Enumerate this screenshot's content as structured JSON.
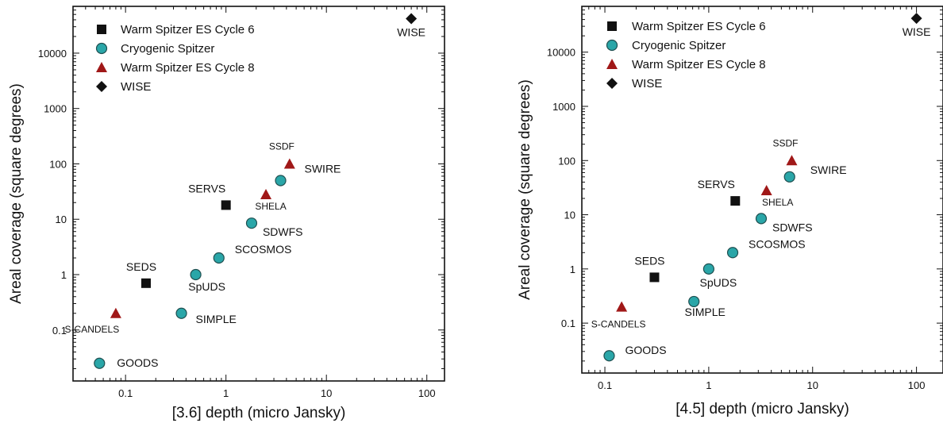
{
  "chart_data": [
    {
      "type": "scatter",
      "xlabel": "[3.6] depth (micro Jansky)",
      "ylabel": "Areal coverage (square degrees)",
      "xscale": "log",
      "yscale": "log",
      "xlim": [
        0.03,
        150
      ],
      "ylim": [
        0.012,
        70000
      ],
      "xticks": [
        0.1,
        1,
        10,
        100
      ],
      "xtick_labels": [
        "0.1",
        "1",
        "10",
        "100"
      ],
      "yticks": [
        0.1,
        1,
        10,
        100,
        1000,
        10000
      ],
      "ytick_labels": [
        "0.1",
        "1",
        "10",
        "100",
        "1000",
        "10000"
      ],
      "grid": false,
      "legend_position": "top-left",
      "series": [
        {
          "name": "Warm Spitzer ES Cycle 6",
          "marker": "square",
          "color": "#111111",
          "points": [
            {
              "x": 0.16,
              "y": 0.7,
              "label": "SEDS"
            },
            {
              "x": 1.0,
              "y": 18,
              "label": "SERVS"
            }
          ]
        },
        {
          "name": "Cryogenic Spitzer",
          "marker": "circle",
          "color": "#2aa6a8",
          "points": [
            {
              "x": 0.055,
              "y": 0.025,
              "label": "GOODS"
            },
            {
              "x": 0.36,
              "y": 0.2,
              "label": "SIMPLE"
            },
            {
              "x": 0.5,
              "y": 1.0,
              "label": "SpUDS"
            },
            {
              "x": 0.85,
              "y": 2.0,
              "label": "SCOSMOS"
            },
            {
              "x": 1.8,
              "y": 8.5,
              "label": "SDWFS"
            },
            {
              "x": 3.5,
              "y": 50,
              "label": "SWIRE"
            }
          ]
        },
        {
          "name": "Warm Spitzer ES Cycle 8",
          "marker": "triangle",
          "color": "#a01818",
          "points": [
            {
              "x": 0.08,
              "y": 0.2,
              "label": "S-CANDELS"
            },
            {
              "x": 2.5,
              "y": 28,
              "label": "SHELA"
            },
            {
              "x": 4.3,
              "y": 100,
              "label": "SSDF"
            }
          ]
        },
        {
          "name": "WISE",
          "marker": "diamond",
          "color": "#111111",
          "points": [
            {
              "x": 70,
              "y": 42000,
              "label": "WISE"
            }
          ]
        }
      ]
    },
    {
      "type": "scatter",
      "xlabel": "[4.5] depth (micro Jansky)",
      "ylabel": "Areal coverage (square degrees)",
      "xscale": "log",
      "yscale": "log",
      "xlim": [
        0.06,
        180
      ],
      "ylim": [
        0.012,
        70000
      ],
      "xticks": [
        0.1,
        1,
        10,
        100
      ],
      "xtick_labels": [
        "0.1",
        "1",
        "10",
        "100"
      ],
      "yticks": [
        0.1,
        1,
        10,
        100,
        1000,
        10000
      ],
      "ytick_labels": [
        "0.1",
        "1",
        "10",
        "100",
        "1000",
        "10000"
      ],
      "grid": false,
      "legend_position": "top-left",
      "series": [
        {
          "name": "Warm Spitzer ES Cycle 6",
          "marker": "square",
          "color": "#111111",
          "points": [
            {
              "x": 0.3,
              "y": 0.7,
              "label": "SEDS"
            },
            {
              "x": 1.8,
              "y": 18,
              "label": "SERVS"
            }
          ]
        },
        {
          "name": "Cryogenic Spitzer",
          "marker": "circle",
          "color": "#2aa6a8",
          "points": [
            {
              "x": 0.11,
              "y": 0.025,
              "label": "GOODS"
            },
            {
              "x": 0.72,
              "y": 0.25,
              "label": "SIMPLE"
            },
            {
              "x": 1.0,
              "y": 1.0,
              "label": "SpUDS"
            },
            {
              "x": 1.7,
              "y": 2.0,
              "label": "SCOSMOS"
            },
            {
              "x": 3.2,
              "y": 8.5,
              "label": "SDWFS"
            },
            {
              "x": 6.0,
              "y": 50,
              "label": "SWIRE"
            }
          ]
        },
        {
          "name": "Warm Spitzer ES Cycle 8",
          "marker": "triangle",
          "color": "#a01818",
          "points": [
            {
              "x": 0.145,
              "y": 0.2,
              "label": "S-CANDELS"
            },
            {
              "x": 3.6,
              "y": 28,
              "label": "SHELA"
            },
            {
              "x": 6.3,
              "y": 100,
              "label": "SSDF"
            }
          ]
        },
        {
          "name": "WISE",
          "marker": "diamond",
          "color": "#111111",
          "points": [
            {
              "x": 100,
              "y": 42000,
              "label": "WISE"
            }
          ]
        }
      ]
    }
  ]
}
